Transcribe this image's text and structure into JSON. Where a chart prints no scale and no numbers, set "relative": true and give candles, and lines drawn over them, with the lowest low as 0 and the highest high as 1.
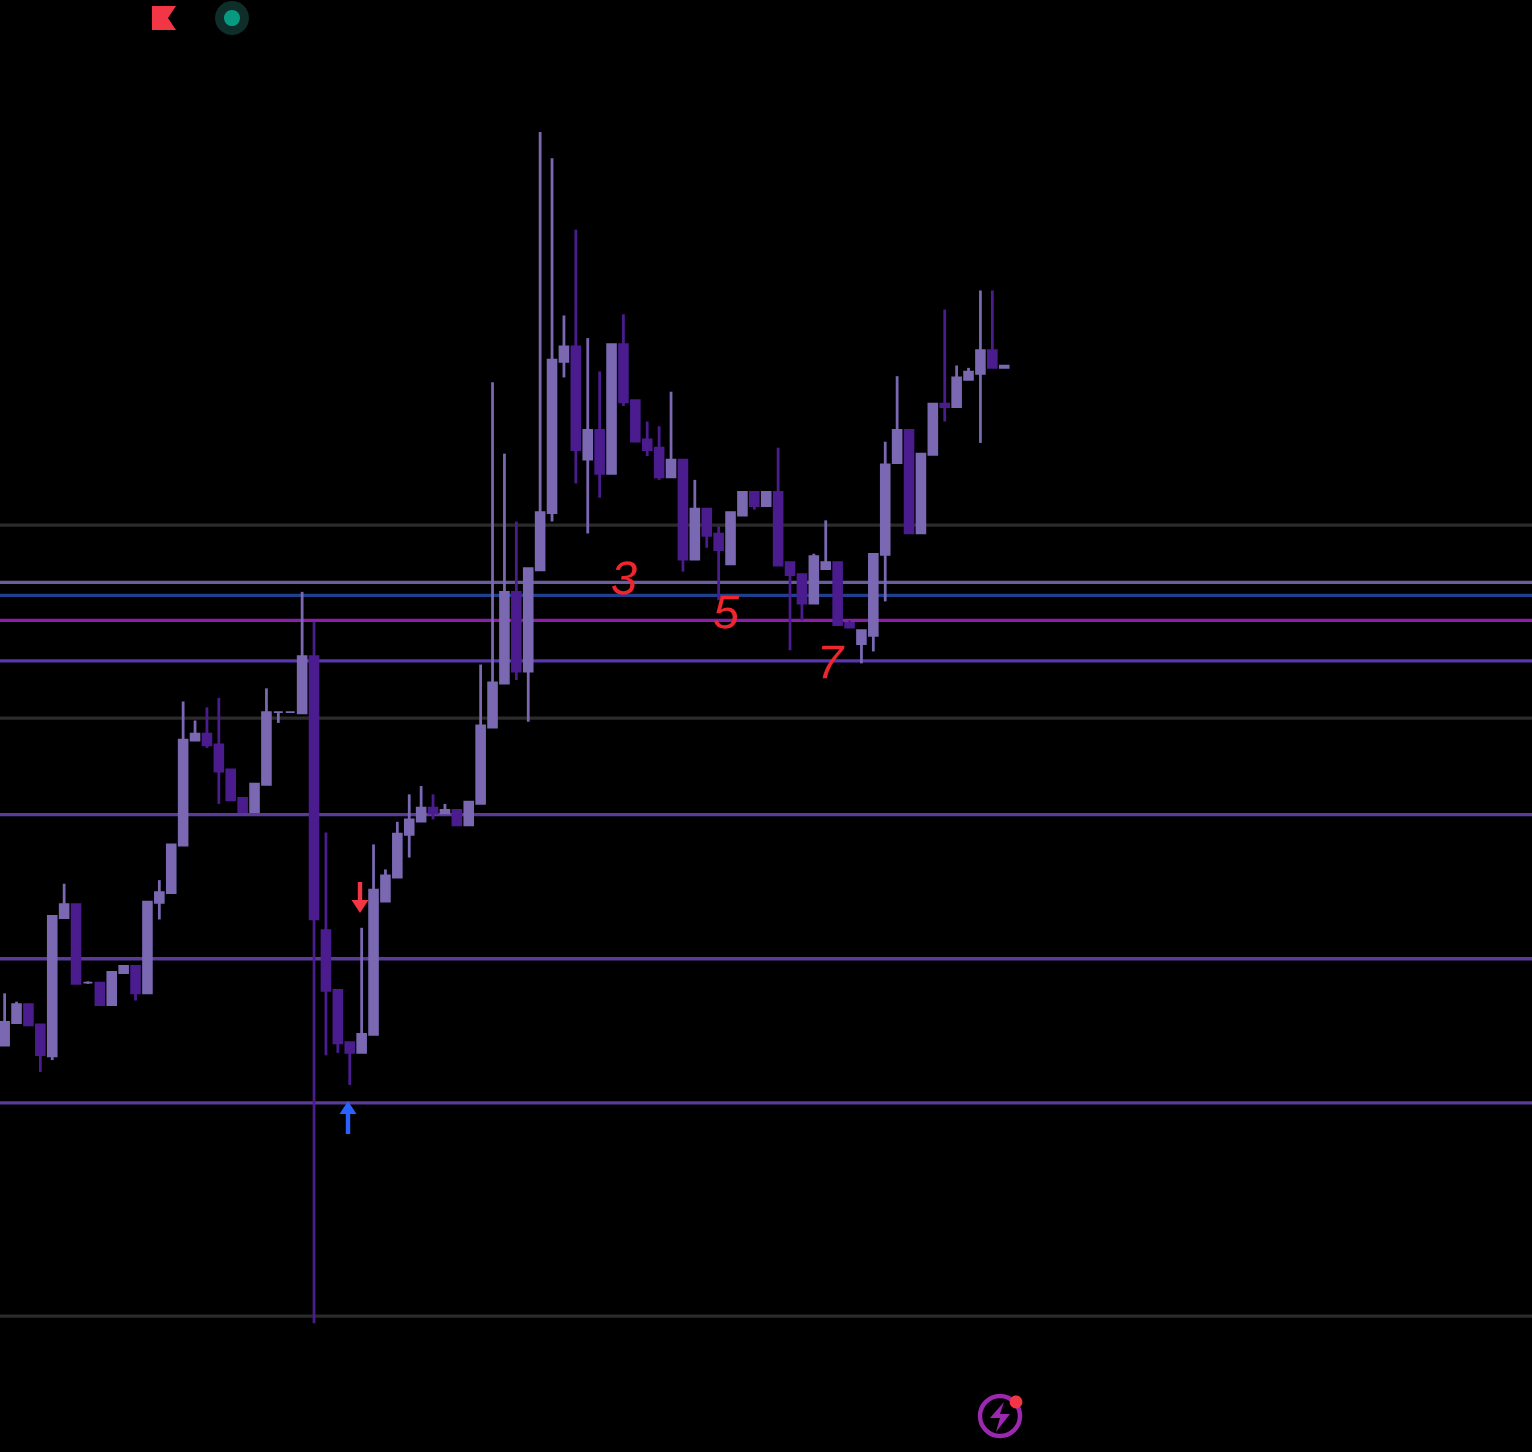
{
  "chart_data": {
    "type": "candlestick",
    "relative": true,
    "categories": [
      null,
      null,
      null,
      null,
      null,
      null,
      null,
      null,
      null,
      null,
      null,
      null,
      null,
      null,
      null,
      null,
      null,
      null,
      null,
      null,
      null,
      null,
      null,
      null,
      null,
      null,
      null,
      null,
      null,
      null,
      null,
      null,
      null,
      null,
      null,
      null,
      null,
      null,
      null,
      null,
      null,
      null,
      null,
      null,
      null,
      null,
      null,
      null,
      null,
      null,
      null,
      null,
      null,
      null,
      null,
      null,
      null,
      null,
      null,
      null,
      null,
      null,
      null,
      null,
      null,
      null,
      null,
      null,
      null,
      null,
      null,
      null,
      null,
      null,
      null,
      null,
      null,
      null,
      null,
      null,
      null,
      null,
      null,
      null,
      null
    ],
    "ohlc": [
      [
        0.233,
        0.277,
        0.233,
        0.253
      ],
      [
        0.252,
        0.27,
        0.252,
        0.268
      ],
      [
        0.268,
        0.268,
        0.25,
        0.25
      ],
      [
        0.251,
        0.251,
        0.211,
        0.225
      ],
      [
        0.224,
        0.342,
        0.221,
        0.342
      ],
      [
        0.34,
        0.369,
        0.34,
        0.352
      ],
      [
        0.352,
        0.352,
        0.285,
        0.285
      ],
      [
        0.286,
        0.287,
        0.285,
        0.286
      ],
      [
        0.286,
        0.286,
        0.267,
        0.267
      ],
      [
        0.267,
        0.295,
        0.267,
        0.295
      ],
      [
        0.294,
        0.3,
        0.294,
        0.3
      ],
      [
        0.3,
        0.3,
        0.271,
        0.277
      ],
      [
        0.277,
        0.354,
        0.277,
        0.354
      ],
      [
        0.353,
        0.372,
        0.339,
        0.362
      ],
      [
        0.361,
        0.402,
        0.361,
        0.402
      ],
      [
        0.401,
        0.522,
        0.401,
        0.49
      ],
      [
        0.489,
        0.506,
        0.489,
        0.495
      ],
      [
        0.495,
        0.517,
        0.483,
        0.485
      ],
      [
        0.486,
        0.525,
        0.436,
        0.463
      ],
      [
        0.465,
        0.465,
        0.439,
        0.439
      ],
      [
        0.441,
        0.441,
        0.429,
        0.429
      ],
      [
        0.429,
        0.453,
        0.429,
        0.453
      ],
      [
        0.452,
        0.533,
        0.452,
        0.513
      ],
      [
        0.513,
        0.513,
        0.504,
        0.513
      ],
      [
        0.513,
        0.513,
        0.513,
        0.513
      ],
      [
        0.512,
        0.614,
        0.512,
        0.56
      ],
      [
        0.56,
        0.589,
        0.0,
        0.339
      ],
      [
        0.33,
        0.412,
        0.225,
        0.279
      ],
      [
        0.28,
        0.28,
        0.227,
        0.235
      ],
      [
        0.236,
        0.236,
        0.2,
        0.227
      ],
      [
        0.227,
        0.332,
        0.227,
        0.243
      ],
      [
        0.242,
        0.402,
        0.242,
        0.364
      ],
      [
        0.354,
        0.381,
        0.354,
        0.376
      ],
      [
        0.374,
        0.421,
        0.374,
        0.411
      ],
      [
        0.41,
        0.444,
        0.391,
        0.423
      ],
      [
        0.421,
        0.451,
        0.421,
        0.433
      ],
      [
        0.433,
        0.444,
        0.423,
        0.428
      ],
      [
        0.428,
        0.436,
        0.428,
        0.431
      ],
      [
        0.431,
        0.431,
        0.418,
        0.418
      ],
      [
        0.418,
        0.438,
        0.418,
        0.438
      ],
      [
        0.436,
        0.553,
        0.436,
        0.502
      ],
      [
        0.5,
        0.79,
        0.5,
        0.538
      ],
      [
        0.537,
        0.73,
        0.537,
        0.614
      ],
      [
        0.614,
        0.673,
        0.54,
        0.547
      ],
      [
        0.547,
        0.634,
        0.505,
        0.634
      ],
      [
        0.632,
        1.0,
        0.632,
        0.681
      ],
      [
        0.68,
        0.978,
        0.673,
        0.809
      ],
      [
        0.807,
        0.846,
        0.794,
        0.82
      ],
      [
        0.82,
        0.918,
        0.705,
        0.733
      ],
      [
        0.725,
        0.827,
        0.663,
        0.75
      ],
      [
        0.75,
        0.799,
        0.693,
        0.713
      ],
      [
        0.713,
        0.822,
        0.713,
        0.822
      ],
      [
        0.822,
        0.847,
        0.77,
        0.773
      ],
      [
        0.775,
        0.775,
        0.74,
        0.74
      ],
      [
        0.742,
        0.757,
        0.728,
        0.733
      ],
      [
        0.735,
        0.753,
        0.708,
        0.71
      ],
      [
        0.71,
        0.782,
        0.71,
        0.725
      ],
      [
        0.725,
        0.725,
        0.631,
        0.641
      ],
      [
        0.641,
        0.708,
        0.641,
        0.684
      ],
      [
        0.684,
        0.684,
        0.651,
        0.661
      ],
      [
        0.663,
        0.669,
        0.607,
        0.649
      ],
      [
        0.637,
        0.681,
        0.637,
        0.681
      ],
      [
        0.678,
        0.698,
        0.678,
        0.698
      ],
      [
        0.698,
        0.698,
        0.683,
        0.686
      ],
      [
        0.686,
        0.698,
        0.686,
        0.698
      ],
      [
        0.698,
        0.735,
        0.636,
        0.636
      ],
      [
        0.639,
        0.639,
        0.565,
        0.628
      ],
      [
        0.629,
        0.629,
        0.59,
        0.604
      ],
      [
        0.604,
        0.646,
        0.604,
        0.644
      ],
      [
        0.633,
        0.674,
        0.633,
        0.639
      ],
      [
        0.639,
        0.639,
        0.586,
        0.586
      ],
      [
        0.588,
        0.59,
        0.584,
        0.584
      ],
      [
        0.57,
        0.582,
        0.554,
        0.582
      ],
      [
        0.577,
        0.646,
        0.564,
        0.646
      ],
      [
        0.645,
        0.74,
        0.606,
        0.721
      ],
      [
        0.722,
        0.795,
        0.722,
        0.75
      ],
      [
        0.75,
        0.75,
        0.663,
        0.663
      ],
      [
        0.663,
        0.73,
        0.663,
        0.73
      ],
      [
        0.729,
        0.772,
        0.729,
        0.772
      ],
      [
        0.772,
        0.851,
        0.757,
        0.769
      ],
      [
        0.769,
        0.804,
        0.769,
        0.794
      ],
      [
        0.792,
        0.802,
        0.792,
        0.799
      ],
      [
        0.797,
        0.867,
        0.739,
        0.817
      ],
      [
        0.817,
        0.867,
        0.802,
        0.802
      ],
      [
        0.802,
        0.804,
        0.802,
        0.804
      ]
    ],
    "colors": [
      "#7b68b2",
      "#7b68b2",
      "#4a1c8e",
      "#4a1c8e",
      "#7b68b2",
      "#7b68b2",
      "#4a1c8e",
      "#7b68b2",
      "#4a1c8e",
      "#7b68b2",
      "#7b68b2",
      "#4a1c8e",
      "#7b68b2",
      "#7b68b2",
      "#7b68b2",
      "#7b68b2",
      "#7b68b2",
      "#4a1c8e",
      "#4a1c8e",
      "#4a1c8e",
      "#4a1c8e",
      "#7b68b2",
      "#7b68b2",
      "#7b68b2",
      "#7b68b2",
      "#7b68b2",
      "#4a1c8e",
      "#4a1c8e",
      "#4a1c8e",
      "#4a1c8e",
      "#7b68b2",
      "#7b68b2",
      "#7b68b2",
      "#7b68b2",
      "#7b68b2",
      "#7b68b2",
      "#4a1c8e",
      "#7b68b2",
      "#4a1c8e",
      "#7b68b2",
      "#7b68b2",
      "#7b68b2",
      "#7b68b2",
      "#4a1c8e",
      "#7b68b2",
      "#7b68b2",
      "#7b68b2",
      "#7b68b2",
      "#4a1c8e",
      "#7b68b2",
      "#4a1c8e",
      "#7b68b2",
      "#4a1c8e",
      "#4a1c8e",
      "#4a1c8e",
      "#4a1c8e",
      "#7b68b2",
      "#4a1c8e",
      "#7b68b2",
      "#4a1c8e",
      "#4a1c8e",
      "#7b68b2",
      "#7b68b2",
      "#4a1c8e",
      "#7b68b2",
      "#4a1c8e",
      "#4a1c8e",
      "#4a1c8e",
      "#7b68b2",
      "#7b68b2",
      "#4a1c8e",
      "#4a1c8e",
      "#7b68b2",
      "#7b68b2",
      "#7b68b2",
      "#7b68b2",
      "#4a1c8e",
      "#7b68b2",
      "#7b68b2",
      "#4a1c8e",
      "#7b68b2",
      "#7b68b2",
      "#7b68b2",
      "#4a1c8e",
      "#7b68b2"
    ],
    "ref_lines": [
      {
        "axis": "y",
        "value": 0.67,
        "color": "#2b2b2b"
      },
      {
        "axis": "y",
        "value": 0.622,
        "color": "#6b5c9e"
      },
      {
        "axis": "y",
        "value": 0.611,
        "color": "#1f3f8f"
      },
      {
        "axis": "y",
        "value": 0.59,
        "color": "#8b1fa8"
      },
      {
        "axis": "y",
        "value": 0.556,
        "color": "#5a35b0"
      },
      {
        "axis": "y",
        "value": 0.508,
        "color": "#2b2b2b"
      },
      {
        "axis": "y",
        "value": 0.427,
        "color": "#5b3b9a"
      },
      {
        "axis": "y",
        "value": 0.306,
        "color": "#5b3b9a"
      },
      {
        "axis": "y",
        "value": 0.185,
        "color": "#5b3b9a"
      },
      {
        "axis": "y",
        "value": 0.006,
        "color": "#2b2b2b"
      }
    ],
    "annotations": [
      "3",
      "5",
      "7"
    ]
  }
}
